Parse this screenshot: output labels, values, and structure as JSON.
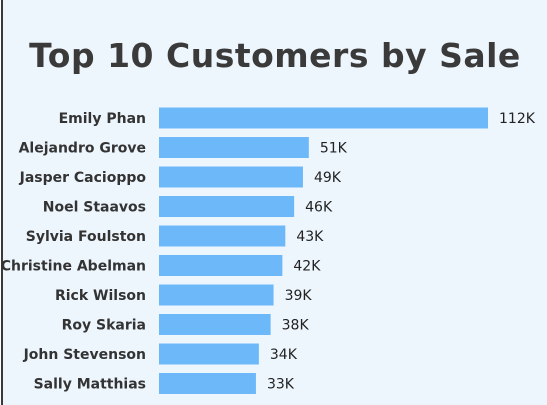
{
  "chart_data": {
    "type": "bar",
    "orientation": "horizontal",
    "title": "Top 10 Customers by Sale",
    "categories": [
      "Emily Phan",
      "Alejandro Grove",
      "Jasper Cacioppo",
      "Noel Staavos",
      "Sylvia Foulston",
      "Christine Abelman",
      "Rick Wilson",
      "Roy Skaria",
      "John Stevenson",
      "Sally Matthias"
    ],
    "values": [
      112000,
      51000,
      49000,
      46000,
      43000,
      42000,
      39000,
      38000,
      34000,
      33000
    ],
    "data_labels": [
      "112K",
      "51K",
      "49K",
      "46K",
      "43K",
      "42K",
      "39K",
      "38K",
      "34K",
      "33K"
    ],
    "bar_color": "#6cb8f9",
    "grid": false,
    "legend": "none"
  },
  "colors": {
    "background": "#eef6fd",
    "bar": "#6cb8f9",
    "title": "#3a3a3a"
  }
}
